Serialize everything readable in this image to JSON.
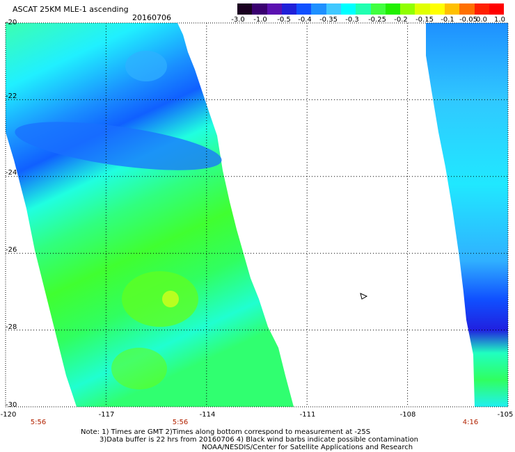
{
  "title": "ASCAT 25KM MLE-1 ascending",
  "date": "20160706",
  "colorbar": {
    "labels": [
      "-3.0",
      "-1.0",
      "-0.5",
      "-0.4",
      "-0.35",
      "-0.3",
      "-0.25",
      "-0.2",
      "-0.15",
      "-0.1",
      "-0.05",
      "0.0",
      "1.0"
    ],
    "colors": [
      "#1a0020",
      "#3a0070",
      "#5a10b0",
      "#2020d8",
      "#1050ff",
      "#1e90ff",
      "#40c8ff",
      "#00ffff",
      "#20ffb0",
      "#40ff40",
      "#20f000",
      "#90ff00",
      "#e0ff00",
      "#ffff00",
      "#ffc000",
      "#ff7000",
      "#ff2000",
      "#ff0000"
    ]
  },
  "axes": {
    "lat_labels": [
      "-20",
      "-22",
      "-24",
      "-26",
      "-28",
      "-30"
    ],
    "lon_labels": [
      "-120",
      "-117",
      "-114",
      "-111",
      "-108",
      "-105"
    ],
    "lon_range": [
      -120,
      -105
    ],
    "lat_range": [
      -30,
      -20
    ]
  },
  "times": [
    "5:56",
    "5:56",
    "4:16"
  ],
  "notes": [
    "Note: 1) Times are GMT 2)Times along bottom correspond to measurement at -25S",
    "3)Data buffer is 22 hrs from 20160706 4) Black wind barbs indicate possible contamination",
    "NOAA/NESDIS/Center for Satellite Applications and Research"
  ]
}
